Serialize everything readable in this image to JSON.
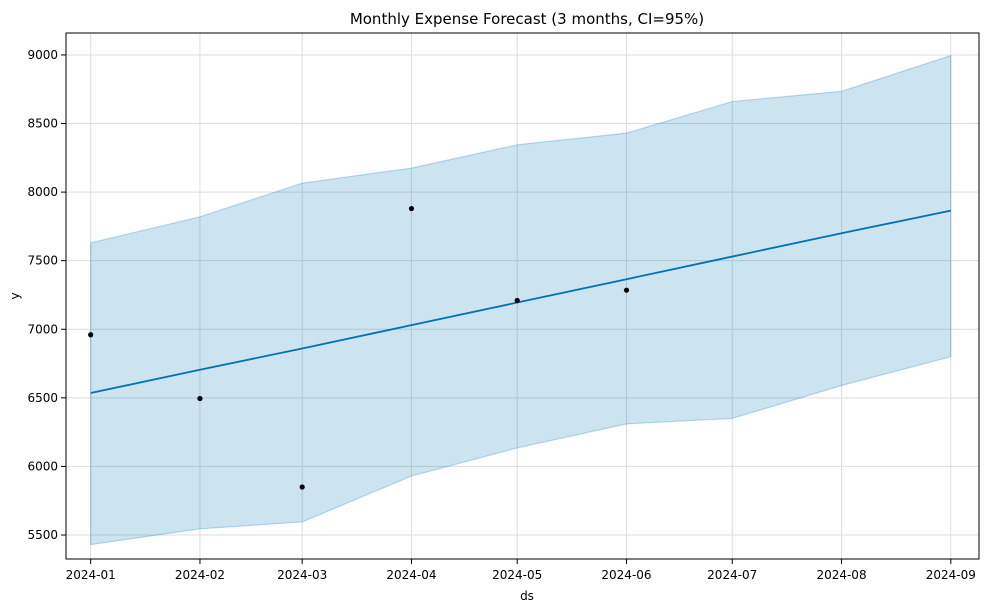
{
  "chart_data": {
    "type": "line",
    "title": "Monthly Expense Forecast (3 months, CI=95%)",
    "xlabel": "ds",
    "ylabel": "y",
    "x_ticks": [
      "2024-01",
      "2024-02",
      "2024-03",
      "2024-04",
      "2024-05",
      "2024-06",
      "2024-07",
      "2024-08",
      "2024-09"
    ],
    "y_ticks": [
      5500,
      6000,
      6500,
      7000,
      7500,
      8000,
      8500,
      9000
    ],
    "xlim": [
      "2023-12-25",
      "2024-09-09"
    ],
    "ylim": [
      5325,
      9160
    ],
    "grid": true,
    "colors": {
      "forecast_line": "#0072b2",
      "interval_fill": "#0072b2",
      "observed_points": "#000000",
      "grid": "#dddddd"
    },
    "series": [
      {
        "kind": "observed-points",
        "x": [
          "2024-01-01",
          "2024-02-01",
          "2024-03-01",
          "2024-04-01",
          "2024-05-01",
          "2024-06-01"
        ],
        "y": [
          6960,
          6495,
          5850,
          7880,
          7210,
          7285
        ]
      },
      {
        "kind": "forecast-line",
        "x": [
          "2024-01-01",
          "2024-02-01",
          "2024-03-01",
          "2024-04-01",
          "2024-05-01",
          "2024-06-01",
          "2024-07-01",
          "2024-08-01",
          "2024-09-01"
        ],
        "y": [
          6535,
          6705,
          6860,
          7030,
          7195,
          7365,
          7530,
          7700,
          7865
        ]
      },
      {
        "kind": "interval-band",
        "x": [
          "2024-01-01",
          "2024-02-01",
          "2024-03-01",
          "2024-04-01",
          "2024-05-01",
          "2024-06-01",
          "2024-07-01",
          "2024-08-01",
          "2024-09-01"
        ],
        "lower": [
          5430,
          5545,
          5595,
          5930,
          6135,
          6310,
          6350,
          6590,
          6800
        ],
        "upper": [
          7630,
          7820,
          8065,
          8175,
          8345,
          8430,
          8660,
          8735,
          8995
        ]
      }
    ]
  }
}
